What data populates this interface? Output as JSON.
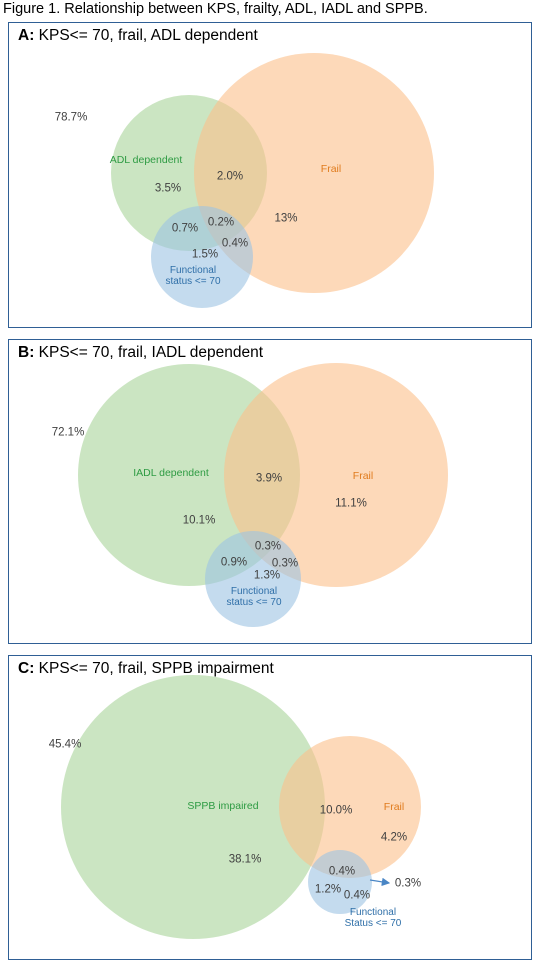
{
  "figure_title": "Figure 1. Relationship between KPS, frailty, ADL, IADL and SPPB.",
  "colors": {
    "green_fill": "#a9d49a",
    "orange_fill": "#fbc08a",
    "blue_fill": "#9cc3e3",
    "border": "#2f5f95",
    "green_text": "#2e9b43",
    "orange_text": "#e07b1d",
    "blue_text": "#2f6fa8"
  },
  "panels": [
    {
      "letter": "A:",
      "title": "KPS<= 70, frail, ADL dependent",
      "outside": "78.7%",
      "set_labels": {
        "green": "ADL dependent",
        "orange": "Frail",
        "blue": "Functional status <= 70"
      },
      "regions": {
        "green_only": "3.5%",
        "green_orange": "2.0%",
        "orange_only": "13%",
        "all_three": "0.2%",
        "green_blue": "0.7%",
        "orange_blue": "0.4%",
        "blue_only": "1.5%"
      }
    },
    {
      "letter": "B:",
      "title": "KPS<= 70, frail, IADL dependent",
      "outside": "72.1%",
      "set_labels": {
        "green": "IADL dependent",
        "orange": "Frail",
        "blue": "Functional status <= 70"
      },
      "regions": {
        "green_only": "10.1%",
        "green_orange": "3.9%",
        "orange_only": "11.1%",
        "all_three": "0.3%",
        "green_blue": "0.9%",
        "orange_blue": "0.3%",
        "blue_only": "1.3%"
      }
    },
    {
      "letter": "C:",
      "title": "KPS<= 70, frail, SPPB impairment",
      "outside": "45.4%",
      "set_labels": {
        "green": "SPPB impaired",
        "orange": "Frail",
        "blue": "Functional Status <= 70"
      },
      "regions": {
        "green_only": "38.1%",
        "green_orange": "10.0%",
        "orange_only": "4.2%",
        "all_three": "0.4%",
        "green_blue": "1.2%",
        "orange_blue": "0.3%",
        "blue_only": "0.4%"
      }
    }
  ]
}
